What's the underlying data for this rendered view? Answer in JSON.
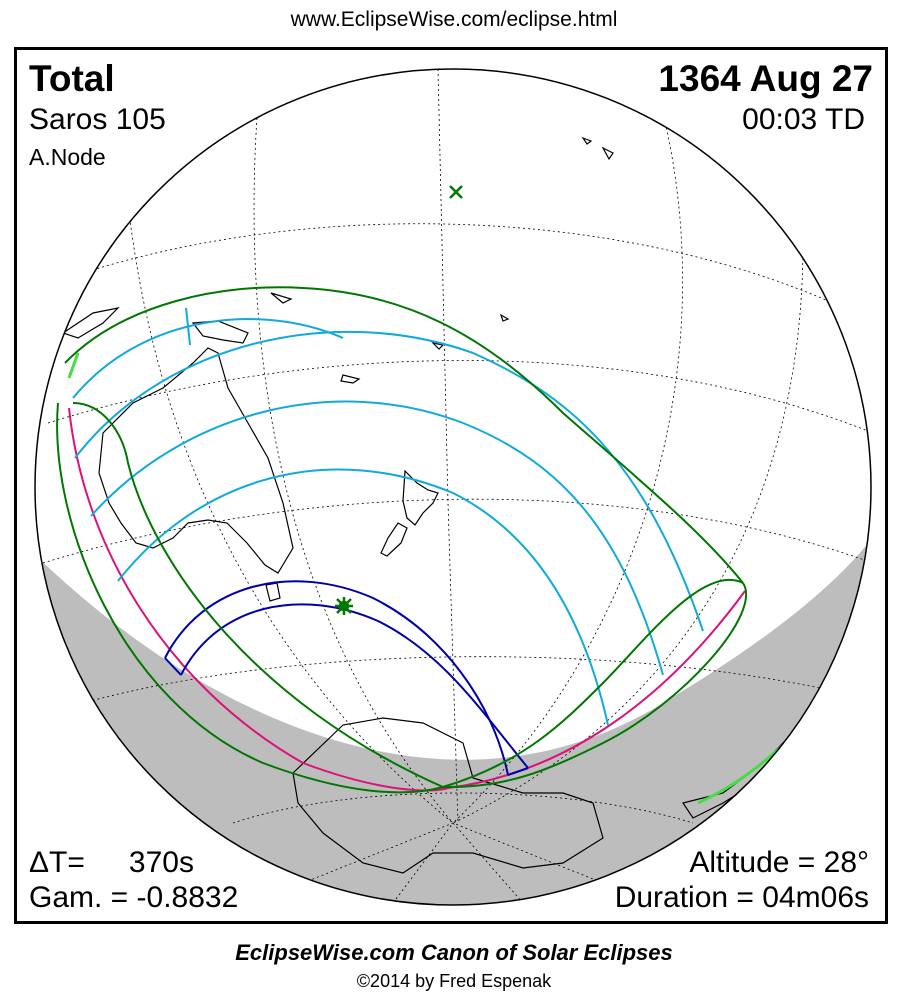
{
  "header": {
    "url": "www.EclipseWise.com/eclipse.html"
  },
  "eclipse": {
    "type": "Total",
    "date": "1364 Aug 27",
    "saros": "Saros 105",
    "time": "00:03 TD",
    "node": "A.Node"
  },
  "stats": {
    "delta_t_label": "ΔT=",
    "delta_t_value": "370s",
    "gamma": "Gam. = -0.8832",
    "altitude": "Altitude = 28°",
    "duration": "Duration = 04m06s"
  },
  "footer": {
    "title": "EclipseWise.com Canon of Solar Eclipses",
    "copyright": "©2014 by Fred Espenak"
  },
  "colors": {
    "penumbral_limit": "#007700",
    "eclipse_magnitude_lines": "#11aadd",
    "central_path": "#0000aa",
    "sunrise_sunset_curve": "#dd1177",
    "night_shade": "#bdbdbd",
    "coastline": "#000000",
    "greatest_eclipse_marker": "#007700"
  },
  "markers": [
    {
      "name": "greatest-eclipse",
      "symbol": "asterisk"
    },
    {
      "name": "subsolar-point",
      "symbol": "cross"
    }
  ]
}
